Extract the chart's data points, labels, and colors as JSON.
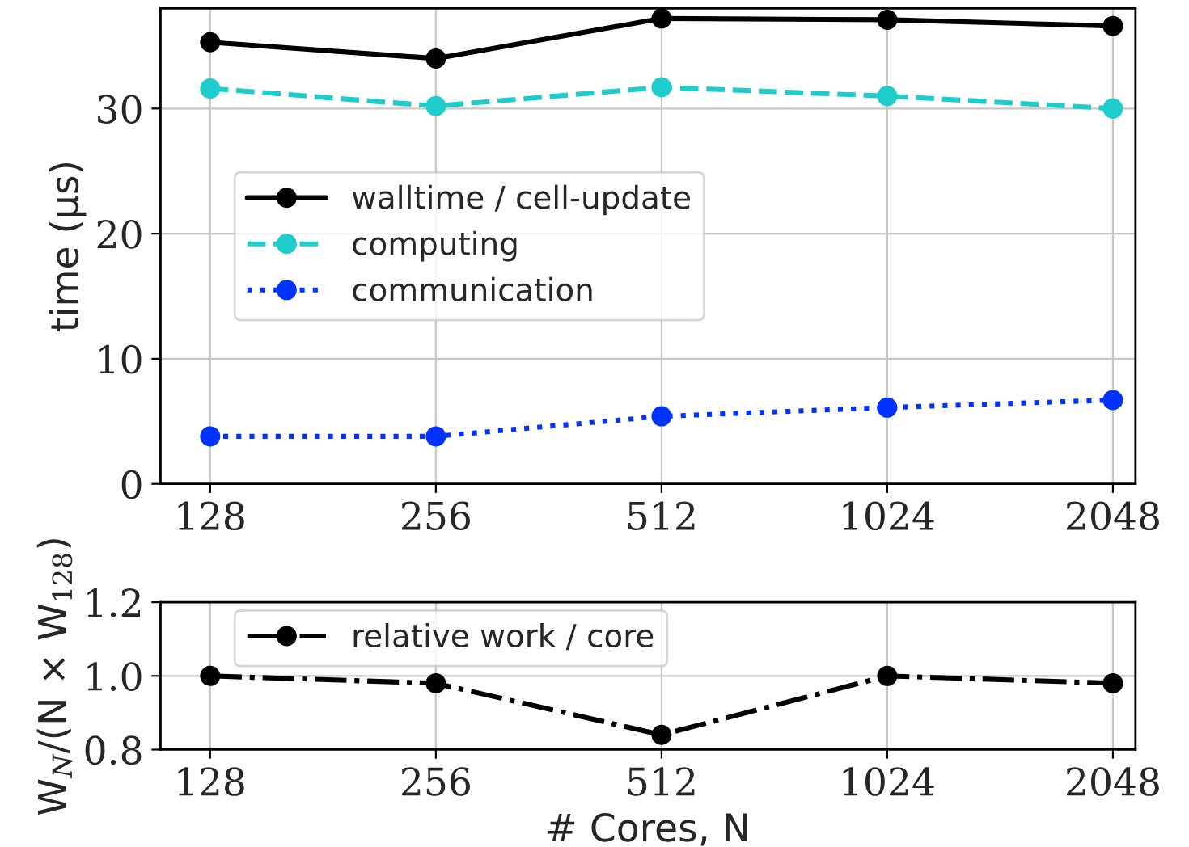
{
  "chart_data": [
    {
      "type": "line",
      "categories": [
        "128",
        "256",
        "512",
        "1024",
        "2048"
      ],
      "ylabel": "time (μs)",
      "ylim": [
        0,
        38
      ],
      "yticks": [
        0,
        10,
        20,
        30
      ],
      "grid": true,
      "legend": "center left",
      "marker": "circle",
      "series": [
        {
          "name": "walltime / cell-update",
          "color": "#000000",
          "line_style": "solid",
          "values": [
            35.3,
            34.0,
            37.2,
            37.1,
            36.6
          ]
        },
        {
          "name": "computing",
          "color": "#1fcccc",
          "line_style": "dashed",
          "values": [
            31.6,
            30.2,
            31.7,
            31.0,
            30.0
          ]
        },
        {
          "name": "communication",
          "color": "#0033ff",
          "line_style": "dotted",
          "values": [
            3.8,
            3.8,
            5.4,
            6.1,
            6.7
          ]
        }
      ]
    },
    {
      "type": "line",
      "categories": [
        "128",
        "256",
        "512",
        "1024",
        "2048"
      ],
      "xlabel": "# Cores, N",
      "ylabel": "W$_{N}$/(N × W$_{128}$)",
      "ylim": [
        0.8,
        1.2
      ],
      "yticks": [
        {
          "value": 0.8,
          "label": "0.8"
        },
        {
          "value": 1.0,
          "label": "1.0"
        },
        {
          "value": 1.2,
          "label": "1.2"
        }
      ],
      "grid": true,
      "legend": "upper left",
      "marker": "circle",
      "series": [
        {
          "name": "relative work / core",
          "color": "#000000",
          "line_style": "dashdot",
          "values": [
            1.0,
            0.98,
            0.84,
            1.0,
            0.98
          ]
        }
      ]
    }
  ]
}
